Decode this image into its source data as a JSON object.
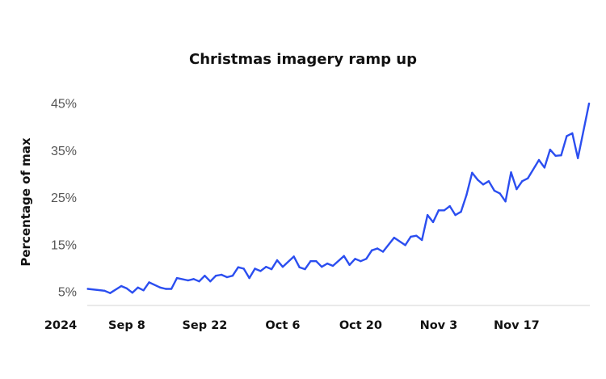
{
  "chart_data": {
    "type": "line",
    "title": "Christmas imagery ramp up",
    "xlabel": "",
    "ylabel": "Percentage of max",
    "year_label": "2024",
    "xlim": [
      "2024-09-01",
      "2024-11-30"
    ],
    "ylim": [
      2,
      47
    ],
    "grid": false,
    "legend": "none",
    "line_color": "#2b4ef0",
    "y_ticks": [
      {
        "value": 5,
        "label": "5%"
      },
      {
        "value": 15,
        "label": "15%"
      },
      {
        "value": 25,
        "label": "25%"
      },
      {
        "value": 35,
        "label": "35%"
      },
      {
        "value": 45,
        "label": "45%"
      }
    ],
    "x_ticks": [
      {
        "date": "2024-09-08",
        "label": "Sep 8"
      },
      {
        "date": "2024-09-22",
        "label": "Sep 22"
      },
      {
        "date": "2024-10-06",
        "label": "Oct 6"
      },
      {
        "date": "2024-10-20",
        "label": "Oct 20"
      },
      {
        "date": "2024-11-03",
        "label": "Nov 3"
      },
      {
        "date": "2024-11-17",
        "label": "Nov 17"
      }
    ],
    "series": [
      {
        "x": [
          "2024-09-01",
          "2024-09-04",
          "2024-09-05",
          "2024-09-07",
          "2024-09-08",
          "2024-09-09",
          "2024-09-10",
          "2024-09-11",
          "2024-09-12",
          "2024-09-14",
          "2024-09-15",
          "2024-09-16",
          "2024-09-17",
          "2024-09-19",
          "2024-09-20",
          "2024-09-21",
          "2024-09-22",
          "2024-09-23",
          "2024-09-24",
          "2024-09-25",
          "2024-09-26",
          "2024-09-27",
          "2024-09-28",
          "2024-09-29",
          "2024-09-30",
          "2024-10-01",
          "2024-10-02",
          "2024-10-03",
          "2024-10-04",
          "2024-10-05",
          "2024-10-06",
          "2024-10-08",
          "2024-10-09",
          "2024-10-10",
          "2024-10-11",
          "2024-10-12",
          "2024-10-13",
          "2024-10-14",
          "2024-10-15",
          "2024-10-17",
          "2024-10-18",
          "2024-10-19",
          "2024-10-20",
          "2024-10-21",
          "2024-10-22",
          "2024-10-23",
          "2024-10-24",
          "2024-10-26",
          "2024-10-28",
          "2024-10-29",
          "2024-10-30",
          "2024-10-31",
          "2024-11-01",
          "2024-11-02",
          "2024-11-03",
          "2024-11-04",
          "2024-11-05",
          "2024-11-06",
          "2024-11-07",
          "2024-11-08",
          "2024-11-09",
          "2024-11-10",
          "2024-11-11",
          "2024-11-12",
          "2024-11-13",
          "2024-11-14",
          "2024-11-15",
          "2024-11-16",
          "2024-11-17",
          "2024-11-18",
          "2024-11-19",
          "2024-11-21",
          "2024-11-22",
          "2024-11-23",
          "2024-11-24",
          "2024-11-25",
          "2024-11-26",
          "2024-11-27",
          "2024-11-28",
          "2024-11-30"
        ],
        "values": [
          5.6,
          5.2,
          4.7,
          6.2,
          5.7,
          4.8,
          5.9,
          5.3,
          7.0,
          5.9,
          5.6,
          5.6,
          7.9,
          7.4,
          7.7,
          7.2,
          8.4,
          7.2,
          8.4,
          8.6,
          8.1,
          8.4,
          10.2,
          9.9,
          7.9,
          9.9,
          9.4,
          10.3,
          9.8,
          11.7,
          10.3,
          12.5,
          10.2,
          9.8,
          11.5,
          11.5,
          10.3,
          11.0,
          10.5,
          12.6,
          10.7,
          12.0,
          11.5,
          12.0,
          13.8,
          14.2,
          13.5,
          16.5,
          14.9,
          16.7,
          16.9,
          16.0,
          21.3,
          19.8,
          22.3,
          22.3,
          23.2,
          21.3,
          22.0,
          25.6,
          30.3,
          28.8,
          27.8,
          28.5,
          26.5,
          25.9,
          24.2,
          30.4,
          26.8,
          28.5,
          29.1,
          33.0,
          31.4,
          35.2,
          33.9,
          34.0,
          38.1,
          38.7,
          33.4,
          45.0
        ]
      }
    ]
  }
}
